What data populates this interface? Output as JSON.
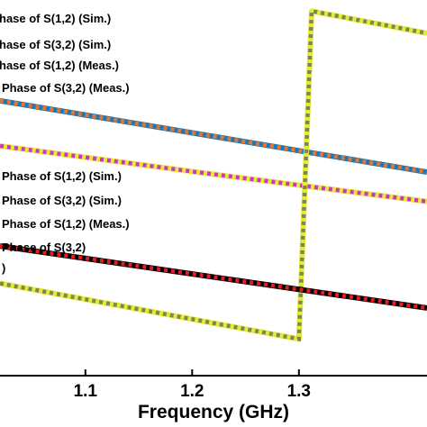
{
  "chart_data": {
    "type": "line",
    "title": "",
    "xlabel": "Frequency (GHz)",
    "ylabel": "",
    "xlim": [
      1.02,
      1.42
    ],
    "ylim": [
      -100,
      100
    ],
    "grid": false,
    "x_ticks": [
      1.1,
      1.2,
      1.3
    ],
    "x_tick_labels": [
      "1.1",
      "1.2",
      "1.3"
    ],
    "legend_upper": {
      "placement": "top-left",
      "entries": [
        "hase of S(1,2) (Sim.)",
        "hase of S(3,2) (Sim.)",
        "hase of S(1,2) (Meas.)",
        "Phase of S(3,2) (Meas.)"
      ]
    },
    "legend_lower": {
      "placement": "center-left",
      "entries": [
        "Phase of S(1,2) (Sim.)",
        "Phase of S(3,2) (Sim.)",
        "Phase of S(1,2) (Meas.)",
        "Phase of S(3,2)",
        ")"
      ]
    },
    "series": [
      {
        "color": "#1f77b4",
        "dash_color": "#e8752a",
        "style": "dashed-over-solid",
        "x": [
          1.02,
          1.42
        ],
        "y": [
          46.4,
          8.4
        ]
      },
      {
        "color": "#e8e83a",
        "dash_color": "#c837c8",
        "style": "dashed-over-solid",
        "x": [
          1.02,
          1.2,
          1.42
        ],
        "y": [
          22.3,
          8.7,
          -7.3
        ]
      },
      {
        "color": "#e8e83a",
        "dash_color": "#7a8a4a",
        "style": "dashed-over-solid",
        "x": [
          1.02,
          1.3,
          1.3,
          1.312,
          1.42
        ],
        "y": [
          -50.9,
          -80.5,
          -80.5,
          94.1,
          82.3
        ]
      },
      {
        "color": "#000000",
        "dash_color": "#e81c1c",
        "style": "dashed-over-solid",
        "x": [
          1.02,
          1.42
        ],
        "y": [
          -31.0,
          -64.0
        ]
      }
    ]
  }
}
